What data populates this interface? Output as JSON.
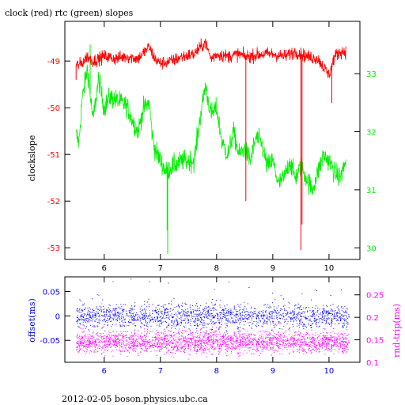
{
  "title": "clock (red) rtc (green) slopes",
  "footer": "2012-02-05  boson.physics.ubc.ca",
  "colors": {
    "red": "#ff0000",
    "green": "#00ee00",
    "blue": "#0000ff",
    "magenta": "#ff00ff",
    "frame": "#000000"
  },
  "chart_data": [
    {
      "type": "line",
      "title": "clock (red) rtc (green) slopes",
      "x": [
        5.5,
        10.35
      ],
      "xticks": [
        6,
        7,
        8,
        9,
        10
      ],
      "xtick_labels": [
        "6",
        "7",
        "8",
        "9",
        "10"
      ],
      "xlim": [
        5.3,
        10.55
      ],
      "ylabel_left": "clockslope",
      "ylim_left": [
        -53.25,
        -48.15
      ],
      "yticks_left": [
        -49,
        -50,
        -51,
        -52,
        -53
      ],
      "ytick_labels_left": [
        "-49",
        "-50",
        "-51",
        "-52",
        "-53"
      ],
      "ylim_right": [
        29.8,
        33.9
      ],
      "yticks_right": [
        33,
        32,
        31,
        30
      ],
      "ytick_labels_right": [
        "33",
        "32",
        "31",
        "30"
      ],
      "grid": false,
      "series": [
        {
          "name": "clock",
          "axis": "left",
          "color": "#ff0000",
          "points": [
            [
              5.5,
              -49.1
            ],
            [
              5.6,
              -49.05
            ],
            [
              5.7,
              -48.9
            ],
            [
              5.8,
              -49.0
            ],
            [
              5.9,
              -48.95
            ],
            [
              6.0,
              -48.9
            ],
            [
              6.2,
              -48.95
            ],
            [
              6.4,
              -48.9
            ],
            [
              6.6,
              -48.95
            ],
            [
              6.8,
              -48.7
            ],
            [
              6.9,
              -48.95
            ],
            [
              7.0,
              -49.05
            ],
            [
              7.2,
              -49.0
            ],
            [
              7.4,
              -48.9
            ],
            [
              7.6,
              -48.85
            ],
            [
              7.8,
              -48.6
            ],
            [
              7.9,
              -48.95
            ],
            [
              8.0,
              -48.85
            ],
            [
              8.2,
              -48.9
            ],
            [
              8.4,
              -48.85
            ],
            [
              8.5,
              -48.9
            ],
            [
              8.6,
              -48.9
            ],
            [
              8.8,
              -48.85
            ],
            [
              9.0,
              -48.85
            ],
            [
              9.2,
              -48.9
            ],
            [
              9.4,
              -48.8
            ],
            [
              9.5,
              -48.85
            ],
            [
              9.6,
              -48.9
            ],
            [
              9.8,
              -48.95
            ],
            [
              10.0,
              -49.3
            ],
            [
              10.1,
              -48.9
            ],
            [
              10.2,
              -48.8
            ],
            [
              10.3,
              -48.8
            ]
          ],
          "spikes": [
            [
              5.5,
              -49.4
            ],
            [
              8.52,
              -52.0
            ],
            [
              9.5,
              -53.05
            ],
            [
              9.52,
              -52.5
            ],
            [
              10.05,
              -49.9
            ]
          ]
        },
        {
          "name": "rtc",
          "axis": "right",
          "color": "#00ee00",
          "points": [
            [
              5.5,
              31.95
            ],
            [
              5.55,
              31.8
            ],
            [
              5.6,
              32.5
            ],
            [
              5.7,
              33.1
            ],
            [
              5.8,
              32.2
            ],
            [
              5.9,
              32.9
            ],
            [
              6.0,
              32.4
            ],
            [
              6.1,
              32.6
            ],
            [
              6.3,
              32.5
            ],
            [
              6.4,
              32.45
            ],
            [
              6.5,
              32.2
            ],
            [
              6.6,
              32.0
            ],
            [
              6.7,
              32.4
            ],
            [
              6.8,
              32.5
            ],
            [
              6.85,
              32.0
            ],
            [
              6.9,
              31.7
            ],
            [
              7.0,
              31.5
            ],
            [
              7.1,
              31.3
            ],
            [
              7.2,
              31.4
            ],
            [
              7.4,
              31.5
            ],
            [
              7.6,
              31.5
            ],
            [
              7.7,
              32.2
            ],
            [
              7.8,
              32.8
            ],
            [
              7.9,
              32.3
            ],
            [
              8.0,
              32.4
            ],
            [
              8.1,
              31.8
            ],
            [
              8.2,
              31.6
            ],
            [
              8.3,
              32.0
            ],
            [
              8.4,
              31.6
            ],
            [
              8.5,
              31.7
            ],
            [
              8.6,
              31.5
            ],
            [
              8.7,
              31.9
            ],
            [
              8.8,
              31.8
            ],
            [
              8.9,
              31.4
            ],
            [
              9.0,
              31.5
            ],
            [
              9.1,
              31.1
            ],
            [
              9.2,
              31.2
            ],
            [
              9.3,
              31.5
            ],
            [
              9.4,
              31.2
            ],
            [
              9.5,
              31.4
            ],
            [
              9.6,
              31.2
            ],
            [
              9.7,
              31.0
            ],
            [
              9.8,
              31.3
            ],
            [
              9.9,
              31.6
            ],
            [
              10.0,
              31.5
            ],
            [
              10.1,
              31.3
            ],
            [
              10.2,
              31.2
            ],
            [
              10.3,
              31.5
            ]
          ],
          "spikes": [
            [
              5.75,
              33.5
            ],
            [
              7.13,
              29.9
            ],
            [
              7.12,
              30.3
            ]
          ]
        }
      ]
    },
    {
      "type": "scatter",
      "xlim": [
        5.3,
        10.55
      ],
      "xticks": [
        6,
        7,
        8,
        9,
        10
      ],
      "xtick_labels": [
        "6",
        "7",
        "8",
        "9",
        "10"
      ],
      "ylabel_left": "offset(ms)",
      "ylim_left": [
        -0.095,
        0.08
      ],
      "yticks_left": [
        0.05,
        0,
        -0.05
      ],
      "ytick_labels_left": [
        "0.05",
        "0",
        "-0.05"
      ],
      "ylabel_right": "rnd-trip(ms)",
      "ylim_right": [
        0.1,
        0.29
      ],
      "yticks_right": [
        0.25,
        0.2,
        0.15,
        0.1
      ],
      "ytick_labels_right": [
        "0.25",
        "0.2",
        "0.15",
        "0.1"
      ],
      "grid": false,
      "series": [
        {
          "name": "offset",
          "axis": "left",
          "color": "#0000ff",
          "x_range": [
            5.5,
            10.35
          ],
          "center": 0.0,
          "spread": 0.012
        },
        {
          "name": "rnd-trip",
          "axis": "right",
          "color": "#ff00ff",
          "x_range": [
            5.5,
            10.35
          ],
          "center": 0.145,
          "spread": 0.012
        }
      ]
    }
  ]
}
